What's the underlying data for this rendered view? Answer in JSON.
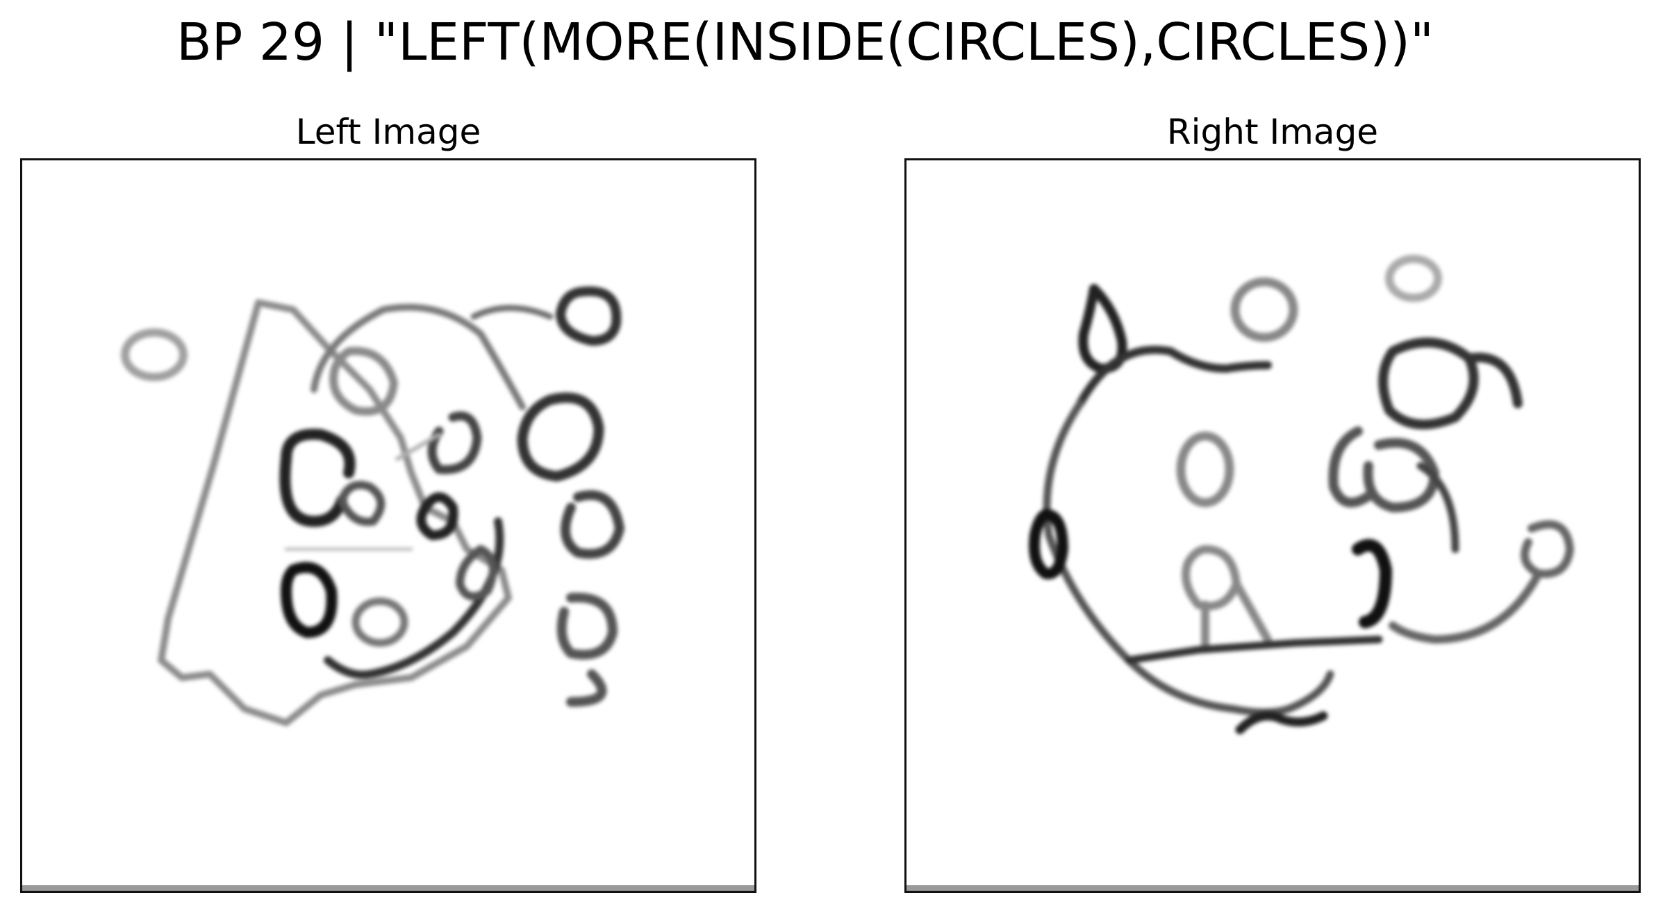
{
  "figure": {
    "title": "BP 29 | \"LEFT(MORE(INSIDE(CIRCLES),CIRCLES))\""
  },
  "panels": [
    {
      "title": "Left Image"
    },
    {
      "title": "Right Image"
    }
  ]
}
